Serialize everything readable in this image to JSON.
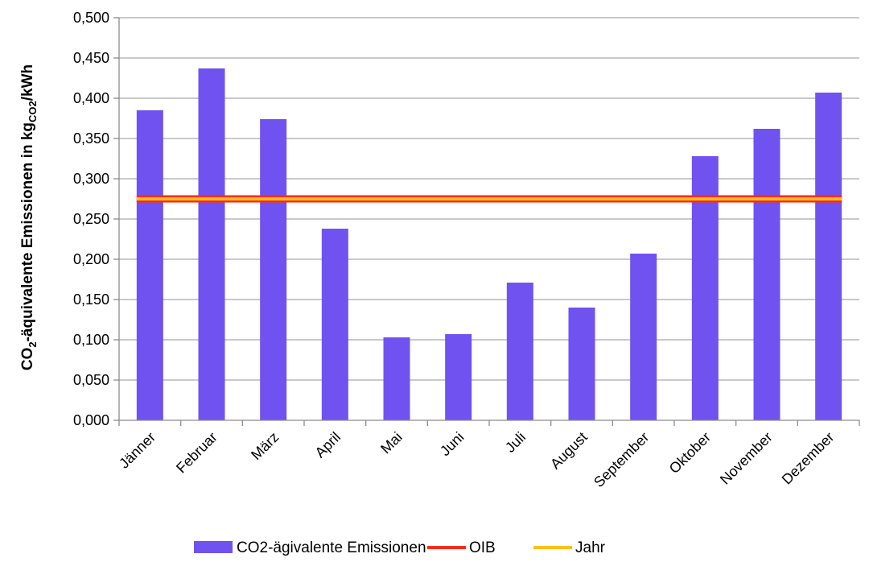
{
  "chart_data": {
    "type": "bar",
    "title": "",
    "xlabel": "",
    "ylabel": {
      "prefix": "CO",
      "prefix_sub": "2",
      "main": "-äquivalente Emissionen in kg",
      "unit_sub": "CO2",
      "suffix": "/kWh"
    },
    "ylim": [
      0,
      0.5
    ],
    "yticks": [
      "0,000",
      "0,050",
      "0,100",
      "0,150",
      "0,200",
      "0,250",
      "0,300",
      "0,350",
      "0,400",
      "0,450",
      "0,500"
    ],
    "ytick_values": [
      0,
      0.05,
      0.1,
      0.15,
      0.2,
      0.25,
      0.3,
      0.35,
      0.4,
      0.45,
      0.5
    ],
    "categories": [
      "Jänner",
      "Februar",
      "März",
      "April",
      "Mai",
      "Juni",
      "Juli",
      "August",
      "September",
      "Oktober",
      "November",
      "Dezember"
    ],
    "series": [
      {
        "name": "CO2-ägivalente Emissionen",
        "kind": "bar",
        "color": "#7052f0",
        "values": [
          0.385,
          0.437,
          0.374,
          0.238,
          0.103,
          0.107,
          0.171,
          0.14,
          0.207,
          0.328,
          0.362,
          0.407
        ]
      },
      {
        "name": "OIB",
        "kind": "line",
        "color": "#ff2a1a",
        "value": 0.275
      },
      {
        "name": "Jahr",
        "kind": "line",
        "color": "#ffbe1a",
        "value": 0.275
      }
    ],
    "grid": true,
    "legend_position": "bottom"
  }
}
